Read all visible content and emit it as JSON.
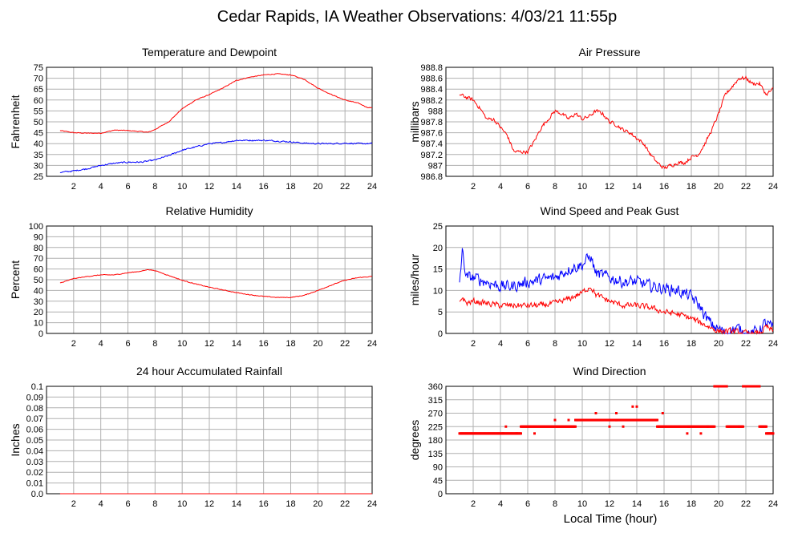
{
  "title": "Cedar Rapids, IA Weather Observations: 4/03/21 11:55p",
  "x_axis_label": "Local Time (hour)",
  "colors": {
    "red": "#ff0000",
    "blue": "#0000ff",
    "grid": "#b0b0b0"
  },
  "chart_data": [
    {
      "type": "line",
      "title": "Temperature and Dewpoint",
      "ylabel": "Fahrenheit",
      "xlim": [
        0,
        24
      ],
      "ylim": [
        25,
        75
      ],
      "xticks": [
        2,
        4,
        6,
        8,
        10,
        12,
        14,
        16,
        18,
        20,
        22,
        24
      ],
      "yticks": [
        25,
        30,
        35,
        40,
        45,
        50,
        55,
        60,
        65,
        70,
        75
      ],
      "grid": true,
      "series": [
        {
          "color": "#ff0000",
          "noise": 0.25,
          "points": [
            [
              1.0,
              46
            ],
            [
              2.0,
              45
            ],
            [
              3.0,
              44.8
            ],
            [
              4.0,
              44.8
            ],
            [
              5.0,
              46.2
            ],
            [
              6.0,
              46
            ],
            [
              7.0,
              45.5
            ],
            [
              7.5,
              45.2
            ],
            [
              8.0,
              46.5
            ],
            [
              9.0,
              50
            ],
            [
              10.0,
              56
            ],
            [
              11.0,
              60
            ],
            [
              12.0,
              62.5
            ],
            [
              13.0,
              65.5
            ],
            [
              14.0,
              69
            ],
            [
              15.0,
              70.5
            ],
            [
              16.0,
              71.5
            ],
            [
              17.0,
              72
            ],
            [
              18.0,
              71.5
            ],
            [
              19.0,
              69.5
            ],
            [
              20.0,
              65.5
            ],
            [
              21.0,
              62.5
            ],
            [
              22.0,
              60
            ],
            [
              23.0,
              58.5
            ],
            [
              23.7,
              56.5
            ],
            [
              24.0,
              56.5
            ]
          ]
        },
        {
          "color": "#0000ff",
          "noise": 0.45,
          "points": [
            [
              1.0,
              26.8
            ],
            [
              2.0,
              27.5
            ],
            [
              3.0,
              28.5
            ],
            [
              4.0,
              30
            ],
            [
              5.0,
              31
            ],
            [
              6.0,
              31.5
            ],
            [
              7.0,
              31.5
            ],
            [
              8.0,
              32.5
            ],
            [
              9.0,
              34.5
            ],
            [
              10.0,
              37
            ],
            [
              11.0,
              38.5
            ],
            [
              12.0,
              40
            ],
            [
              13.0,
              40.5
            ],
            [
              14.0,
              41.5
            ],
            [
              15.0,
              41.5
            ],
            [
              16.0,
              41.5
            ],
            [
              17.0,
              41.2
            ],
            [
              18.0,
              40.8
            ],
            [
              19.0,
              40.2
            ],
            [
              20.0,
              40
            ],
            [
              21.0,
              40
            ],
            [
              22.0,
              40.2
            ],
            [
              23.0,
              40
            ],
            [
              24.0,
              40
            ]
          ]
        }
      ]
    },
    {
      "type": "line",
      "title": "Air Pressure",
      "ylabel": "millibars",
      "xlim": [
        0,
        24
      ],
      "ylim": [
        986.8,
        988.8
      ],
      "xticks": [
        2,
        4,
        6,
        8,
        10,
        12,
        14,
        16,
        18,
        20,
        22,
        24
      ],
      "yticks": [
        986.8,
        987.0,
        987.2,
        987.4,
        987.6,
        987.8,
        988.0,
        988.2,
        988.4,
        988.6,
        988.8
      ],
      "grid": true,
      "series": [
        {
          "color": "#ff0000",
          "noise": 0.05,
          "points": [
            [
              1.0,
              988.3
            ],
            [
              1.5,
              988.25
            ],
            [
              2.0,
              988.2
            ],
            [
              2.5,
              988.05
            ],
            [
              3.0,
              987.85
            ],
            [
              3.5,
              987.85
            ],
            [
              4.0,
              987.7
            ],
            [
              4.5,
              987.55
            ],
            [
              5.0,
              987.25
            ],
            [
              5.5,
              987.25
            ],
            [
              6.0,
              987.25
            ],
            [
              6.5,
              987.45
            ],
            [
              7.0,
              987.7
            ],
            [
              7.5,
              987.85
            ],
            [
              8.0,
              988.0
            ],
            [
              8.5,
              987.95
            ],
            [
              9.0,
              987.85
            ],
            [
              9.5,
              987.95
            ],
            [
              10.0,
              987.85
            ],
            [
              10.5,
              987.9
            ],
            [
              11.0,
              988.0
            ],
            [
              11.5,
              987.95
            ],
            [
              12.0,
              987.8
            ],
            [
              12.5,
              987.75
            ],
            [
              13.0,
              987.65
            ],
            [
              13.5,
              987.6
            ],
            [
              14.0,
              987.5
            ],
            [
              14.5,
              987.4
            ],
            [
              15.0,
              987.2
            ],
            [
              15.5,
              987.05
            ],
            [
              16.0,
              986.95
            ],
            [
              16.5,
              987.0
            ],
            [
              17.0,
              987.05
            ],
            [
              17.5,
              987.05
            ],
            [
              18.0,
              987.15
            ],
            [
              18.5,
              987.2
            ],
            [
              19.0,
              987.4
            ],
            [
              19.5,
              987.65
            ],
            [
              20.0,
              987.95
            ],
            [
              20.5,
              988.3
            ],
            [
              21.0,
              988.45
            ],
            [
              21.5,
              988.6
            ],
            [
              22.0,
              988.6
            ],
            [
              22.5,
              988.5
            ],
            [
              23.0,
              988.5
            ],
            [
              23.5,
              988.3
            ],
            [
              24.0,
              988.4
            ]
          ]
        }
      ]
    },
    {
      "type": "line",
      "title": "Relative Humidity",
      "ylabel": "Percent",
      "xlim": [
        0,
        24
      ],
      "ylim": [
        0,
        100
      ],
      "xticks": [
        2,
        4,
        6,
        8,
        10,
        12,
        14,
        16,
        18,
        20,
        22,
        24
      ],
      "yticks": [
        0,
        10,
        20,
        30,
        40,
        50,
        60,
        70,
        80,
        90,
        100
      ],
      "grid": true,
      "series": [
        {
          "color": "#ff0000",
          "noise": 0.45,
          "points": [
            [
              1.0,
              47
            ],
            [
              2.0,
              51
            ],
            [
              3.0,
              53
            ],
            [
              4.0,
              54.5
            ],
            [
              5.0,
              54.5
            ],
            [
              6.0,
              56.5
            ],
            [
              7.0,
              58
            ],
            [
              7.5,
              59.5
            ],
            [
              8.0,
              58.5
            ],
            [
              9.0,
              54
            ],
            [
              10.0,
              49.5
            ],
            [
              11.0,
              46
            ],
            [
              12.0,
              43
            ],
            [
              13.0,
              40.5
            ],
            [
              14.0,
              38
            ],
            [
              15.0,
              36
            ],
            [
              16.0,
              34.5
            ],
            [
              17.0,
              33.5
            ],
            [
              18.0,
              33.5
            ],
            [
              19.0,
              35.5
            ],
            [
              20.0,
              40
            ],
            [
              21.0,
              45
            ],
            [
              22.0,
              49.5
            ],
            [
              23.0,
              52
            ],
            [
              24.0,
              53
            ]
          ]
        }
      ]
    },
    {
      "type": "line",
      "title": "Wind Speed and Peak Gust",
      "ylabel": "miles/hour",
      "xlim": [
        0,
        24
      ],
      "ylim": [
        0,
        25
      ],
      "xticks": [
        2,
        4,
        6,
        8,
        10,
        12,
        14,
        16,
        18,
        20,
        22,
        24
      ],
      "yticks": [
        0,
        5,
        10,
        15,
        20,
        25
      ],
      "grid": true,
      "series": [
        {
          "color": "#0000ff",
          "noise": 2.0,
          "points": [
            [
              1.0,
              12
            ],
            [
              1.2,
              19
            ],
            [
              1.5,
              13
            ],
            [
              2.0,
              13
            ],
            [
              3.0,
              12
            ],
            [
              4.0,
              11
            ],
            [
              5.0,
              11
            ],
            [
              6.0,
              12
            ],
            [
              7.0,
              12.5
            ],
            [
              8.0,
              13
            ],
            [
              9.0,
              15
            ],
            [
              10.0,
              16
            ],
            [
              10.6,
              18
            ],
            [
              11.0,
              14
            ],
            [
              12.0,
              13
            ],
            [
              13.0,
              12
            ],
            [
              14.0,
              12
            ],
            [
              15.0,
              11
            ],
            [
              16.0,
              10.5
            ],
            [
              17.0,
              10
            ],
            [
              18.0,
              8.5
            ],
            [
              18.7,
              6
            ],
            [
              19.0,
              4
            ],
            [
              19.5,
              2
            ],
            [
              20.0,
              1
            ],
            [
              20.5,
              0
            ],
            [
              21.0,
              1
            ],
            [
              21.5,
              1
            ],
            [
              22.0,
              0
            ],
            [
              22.5,
              0
            ],
            [
              23.0,
              1
            ],
            [
              23.5,
              2.5
            ],
            [
              24.0,
              1
            ]
          ]
        },
        {
          "color": "#ff0000",
          "noise": 1.0,
          "points": [
            [
              1.0,
              7
            ],
            [
              1.2,
              8.5
            ],
            [
              1.5,
              7
            ],
            [
              2.0,
              7.5
            ],
            [
              3.0,
              7
            ],
            [
              4.0,
              6.5
            ],
            [
              5.0,
              6.5
            ],
            [
              6.0,
              6.5
            ],
            [
              7.0,
              6.5
            ],
            [
              8.0,
              7
            ],
            [
              9.0,
              8
            ],
            [
              10.0,
              9.5
            ],
            [
              10.6,
              11
            ],
            [
              11.0,
              9
            ],
            [
              12.0,
              7.5
            ],
            [
              13.0,
              6.5
            ],
            [
              14.0,
              6.5
            ],
            [
              15.0,
              6
            ],
            [
              16.0,
              5
            ],
            [
              17.0,
              4.5
            ],
            [
              18.0,
              3.5
            ],
            [
              19.0,
              2
            ],
            [
              20.0,
              0.5
            ],
            [
              21.0,
              0.5
            ],
            [
              22.0,
              0
            ],
            [
              23.0,
              0
            ],
            [
              23.5,
              1.5
            ],
            [
              24.0,
              0.5
            ]
          ]
        }
      ]
    },
    {
      "type": "line",
      "title": "24 hour Accumulated Rainfall",
      "ylabel": "Inches",
      "xlim": [
        0,
        24
      ],
      "ylim": [
        0.0,
        0.1
      ],
      "xticks": [
        2,
        4,
        6,
        8,
        10,
        12,
        14,
        16,
        18,
        20,
        22,
        24
      ],
      "yticks": [
        0.0,
        0.01,
        0.02,
        0.03,
        0.04,
        0.05,
        0.06,
        0.07,
        0.08,
        0.09,
        0.1
      ],
      "ytick_labels": [
        "0.0",
        "0.01",
        "0.02",
        "0.03",
        "0.04",
        "0.05",
        "0.06",
        "0.07",
        "0.08",
        "0.09",
        "0.1"
      ],
      "grid": true,
      "series": [
        {
          "color": "#ff0000",
          "noise": 0,
          "points": [
            [
              1.0,
              0.0
            ],
            [
              24.0,
              0.0
            ]
          ]
        }
      ]
    },
    {
      "type": "scatter",
      "title": "Wind Direction",
      "ylabel": "degrees",
      "xlim": [
        0,
        24
      ],
      "ylim": [
        0,
        360
      ],
      "xticks": [
        2,
        4,
        6,
        8,
        10,
        12,
        14,
        16,
        18,
        20,
        22,
        24
      ],
      "yticks": [
        0,
        45,
        90,
        135,
        180,
        225,
        270,
        315,
        360
      ],
      "grid": true,
      "series": [
        {
          "color": "#ff0000",
          "runs": [
            [
              1.0,
              4.2,
              202
            ],
            [
              4.2,
              5.5,
              202
            ],
            [
              5.5,
              9.5,
              225
            ],
            [
              9.5,
              12.5,
              247
            ],
            [
              12.5,
              15.5,
              247
            ],
            [
              15.5,
              17.8,
              225
            ],
            [
              17.8,
              19.7,
              225
            ],
            [
              19.7,
              20.6,
              360
            ],
            [
              20.6,
              21.8,
              225
            ],
            [
              21.8,
              23.0,
              360
            ],
            [
              23.0,
              23.5,
              225
            ],
            [
              23.5,
              24.0,
              202
            ]
          ],
          "points": [
            [
              4.4,
              225
            ],
            [
              5.2,
              202
            ],
            [
              6.5,
              202
            ],
            [
              11,
              270
            ],
            [
              12.5,
              270
            ],
            [
              13.7,
              292
            ],
            [
              14,
              292
            ],
            [
              15.9,
              270
            ],
            [
              17.7,
              202
            ],
            [
              18.7,
              202
            ],
            [
              19.2,
              225
            ],
            [
              21.5,
              225
            ],
            [
              12,
              225
            ],
            [
              13,
              225
            ],
            [
              8,
              247
            ],
            [
              9,
              247
            ]
          ]
        }
      ]
    }
  ]
}
